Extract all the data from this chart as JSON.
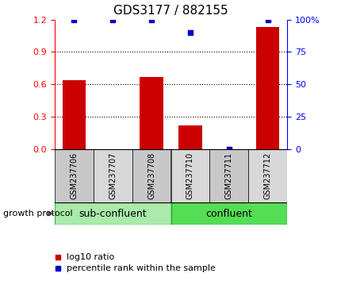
{
  "title": "GDS3177 / 882155",
  "categories": [
    "GSM237706",
    "GSM237707",
    "GSM237708",
    "GSM237710",
    "GSM237711",
    "GSM237712"
  ],
  "log10_ratio": [
    0.64,
    0.0,
    0.67,
    0.22,
    0.0,
    1.13
  ],
  "percentile_rank": [
    100,
    100,
    100,
    90,
    0,
    100
  ],
  "ylim_left": [
    0,
    1.2
  ],
  "ylim_right": [
    0,
    100
  ],
  "yticks_left": [
    0,
    0.3,
    0.6,
    0.9,
    1.2
  ],
  "yticks_right": [
    0,
    25,
    50,
    75,
    100
  ],
  "bar_color": "#cc0000",
  "dot_color": "#0000cc",
  "group1_label": "sub-confluent",
  "group2_label": "confluent",
  "group1_color": "#aaeaaa",
  "group2_color": "#55dd55",
  "protocol_label": "growth protocol",
  "legend_bar_label": "log10 ratio",
  "legend_dot_label": "percentile rank within the sample",
  "title_fontsize": 11,
  "tick_label_fontsize": 7,
  "axis_tick_fontsize": 8,
  "group_fontsize": 9,
  "legend_fontsize": 8
}
